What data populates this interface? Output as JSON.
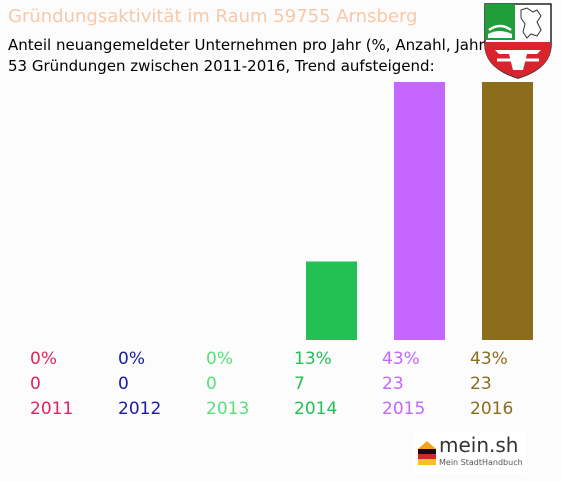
{
  "header": {
    "title": "Gründungsaktivität im Raum 59755 Arnsberg",
    "subtitle_line1": "Anteil neuangemeldeter Unternehmen pro Jahr (%, Anzahl, Jahr)",
    "subtitle_line2": "53 Gründungen zwischen 2011-2016, Trend aufsteigend:"
  },
  "brand": {
    "name": "mein.sh",
    "tagline": "Mein StadtHandbuch"
  },
  "chart_data": {
    "type": "bar",
    "categories": [
      "2011",
      "2012",
      "2013",
      "2014",
      "2015",
      "2016"
    ],
    "percent_labels": [
      "0%",
      "0%",
      "0%",
      "13%",
      "43%",
      "43%"
    ],
    "count_labels": [
      "0",
      "0",
      "0",
      "7",
      "23",
      "23"
    ],
    "values": [
      0,
      0,
      0,
      7,
      23,
      23
    ],
    "colors": [
      "#e0245e",
      "#1a1aa6",
      "#5ae07a",
      "#22c055",
      "#c466ff",
      "#8b6d1c"
    ],
    "grid": false,
    "legend": "none"
  }
}
